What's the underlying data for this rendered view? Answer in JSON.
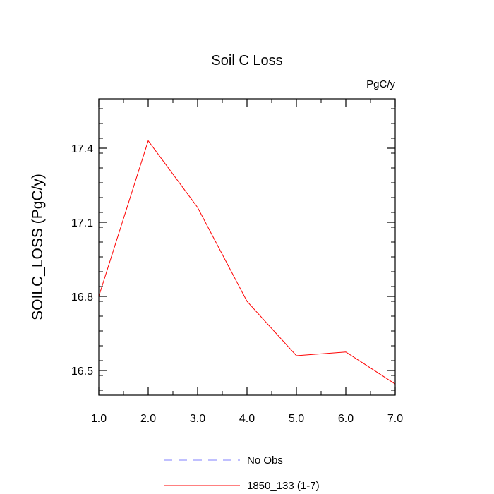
{
  "chart_data": {
    "type": "line",
    "title": "Soil C Loss",
    "units_label": "PgC/y",
    "xlabel": "",
    "ylabel": "SOILC_LOSS  (PgC/y)",
    "xlim": [
      1.0,
      7.0
    ],
    "ylim": [
      16.4,
      17.6
    ],
    "x_ticks": [
      1.0,
      2.0,
      3.0,
      4.0,
      5.0,
      6.0,
      7.0
    ],
    "x_tick_labels": [
      "1.0",
      "2.0",
      "3.0",
      "4.0",
      "5.0",
      "6.0",
      "7.0"
    ],
    "y_ticks": [
      16.5,
      16.8,
      17.1,
      17.4
    ],
    "y_tick_labels": [
      "16.5",
      "16.8",
      "17.1",
      "17.4"
    ],
    "grid": false,
    "legend_position": "bottom",
    "series": [
      {
        "name": "1850_133 (1-7)",
        "color": "#ff0000",
        "style": "solid",
        "x": [
          1.0,
          2.0,
          3.0,
          4.0,
          5.0,
          6.0,
          7.0
        ],
        "values": [
          16.8,
          17.43,
          17.16,
          16.78,
          16.56,
          16.575,
          16.445
        ]
      }
    ],
    "legend": [
      {
        "label": "No Obs",
        "color": "#8080ff",
        "style": "dashed"
      },
      {
        "label": "1850_133 (1-7)",
        "color": "#ff0000",
        "style": "solid"
      }
    ]
  }
}
